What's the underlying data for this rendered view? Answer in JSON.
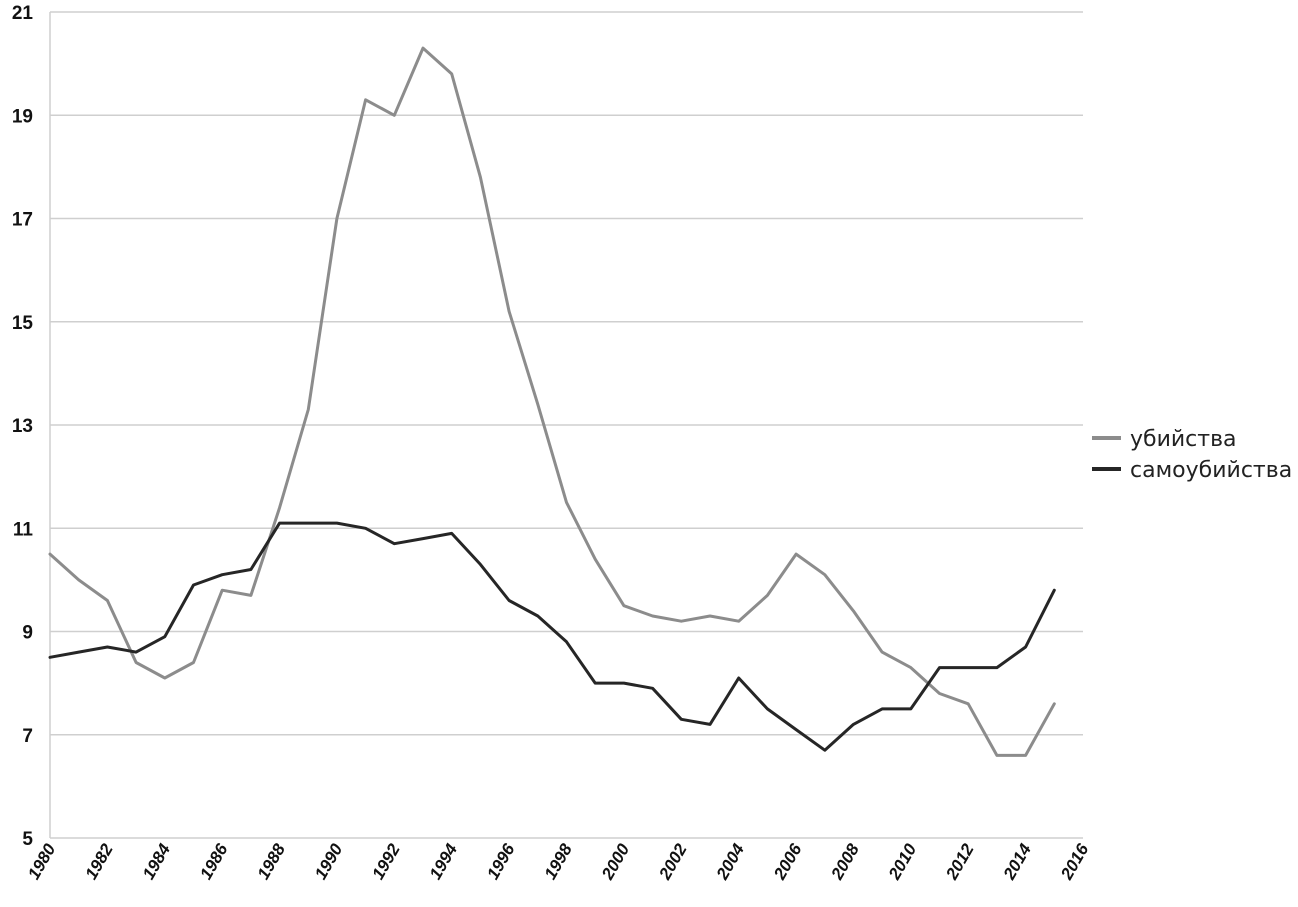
{
  "chart_data": {
    "type": "line",
    "title": "",
    "xlabel": "",
    "ylabel": "",
    "xlim": [
      1980,
      2016
    ],
    "ylim": [
      5,
      21
    ],
    "y_ticks": [
      "5",
      "7",
      "9",
      "11",
      "13",
      "15",
      "17",
      "19",
      "21"
    ],
    "x_ticks": [
      "1980",
      "1982",
      "1984",
      "1986",
      "1988",
      "1990",
      "1992",
      "1994",
      "1996",
      "1998",
      "2000",
      "2002",
      "2004",
      "2006",
      "2008",
      "2010",
      "2012",
      "2014",
      "2016"
    ],
    "grid": "horizontal",
    "legend_position": "right",
    "x": [
      1980,
      1981,
      1982,
      1983,
      1984,
      1985,
      1986,
      1987,
      1988,
      1989,
      1990,
      1991,
      1992,
      1993,
      1994,
      1995,
      1996,
      1997,
      1998,
      1999,
      2000,
      2001,
      2002,
      2003,
      2004,
      2005,
      2006,
      2007,
      2008,
      2009,
      2010,
      2011,
      2012,
      2013,
      2014,
      2015
    ],
    "series": [
      {
        "name": "убийства",
        "color": "#8c8c8c",
        "values": [
          10.5,
          10.0,
          9.6,
          8.4,
          8.1,
          8.4,
          9.8,
          9.7,
          11.4,
          13.3,
          17.0,
          19.3,
          19.0,
          20.3,
          19.8,
          17.8,
          15.2,
          13.4,
          11.5,
          10.4,
          9.5,
          9.3,
          9.2,
          9.3,
          9.2,
          9.7,
          10.5,
          10.1,
          9.4,
          8.6,
          8.3,
          7.8,
          7.6,
          6.6,
          6.6,
          7.6
        ]
      },
      {
        "name": "самоубийства",
        "color": "#262626",
        "values": [
          8.5,
          8.6,
          8.7,
          8.6,
          8.9,
          9.9,
          10.1,
          10.2,
          11.1,
          11.1,
          11.1,
          11.0,
          10.7,
          10.8,
          10.9,
          10.3,
          9.6,
          9.3,
          8.8,
          8.0,
          8.0,
          7.9,
          7.3,
          7.2,
          8.1,
          7.5,
          7.1,
          6.7,
          7.2,
          7.5,
          7.5,
          8.3,
          8.3,
          8.3,
          8.7,
          9.8
        ]
      }
    ]
  }
}
